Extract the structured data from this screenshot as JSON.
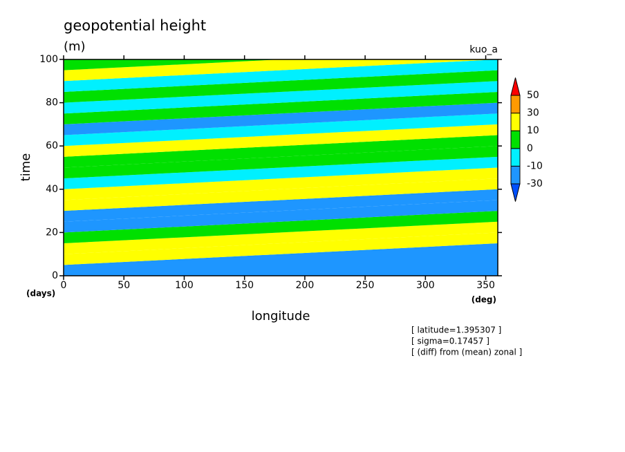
{
  "chart_data": {
    "type": "contour",
    "title": "geopotential height",
    "subtitle": "(m)",
    "annotation": "kuo_a",
    "xlabel": "longitude",
    "ylabel": "time",
    "xunit": "(deg)",
    "yunit": "(days)",
    "notes": [
      "[ latitude=1.395307 ]",
      "[ sigma=0.17457 ]",
      "[ (diff) from (mean) zonal ]"
    ],
    "xlim": [
      0,
      360
    ],
    "xticks": [
      0,
      50,
      100,
      150,
      200,
      250,
      300,
      350
    ],
    "ylim": [
      0,
      100
    ],
    "yticks": [
      0,
      20,
      40,
      60,
      80,
      100
    ],
    "levels": [
      -30,
      -10,
      0,
      10,
      30,
      50
    ],
    "colors": [
      "#0050ff",
      "#1e96ff",
      "#00f0ff",
      "#00e000",
      "#ffff00",
      "#ff9a00",
      "#ff0000"
    ],
    "y": [
      0,
      5,
      10,
      15,
      20,
      25,
      30,
      35,
      40,
      45,
      50,
      55,
      60,
      65,
      70,
      75,
      80,
      85,
      90,
      95
    ],
    "values": [
      -15,
      15,
      12,
      5,
      -20,
      -12,
      12,
      15,
      -5,
      5,
      3,
      12,
      -5,
      -15,
      5,
      -5,
      5,
      -5,
      15,
      5
    ]
  }
}
